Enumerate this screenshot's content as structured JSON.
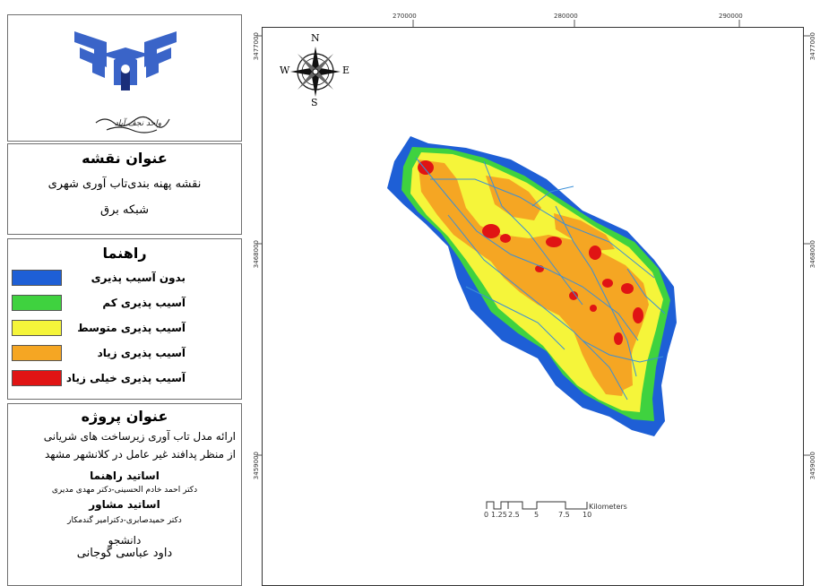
{
  "logo": {
    "caption": "واحد نجف آباد",
    "icon": "university-emblem-icon",
    "color": "#3a64c8"
  },
  "map_title": {
    "heading": "عنوان نقشه",
    "line1": "نقشه پهنه بندی‌تاب آوری شهری",
    "line2": "شبکه برق"
  },
  "legend": {
    "heading": "راهنما",
    "items": [
      {
        "label": "بدون آسیب پذیری",
        "color": "#1e5fd6"
      },
      {
        "label": "آسیب پذیری کم",
        "color": "#3fd23f"
      },
      {
        "label": "آسیب پذیری متوسط",
        "color": "#f5f53a"
      },
      {
        "label": "آسیب پذیری زیاد",
        "color": "#f5a623"
      },
      {
        "label": "آسیب پذیری خیلی زیاد",
        "color": "#e01414"
      }
    ]
  },
  "project": {
    "heading": "عنوان پروژه",
    "line1": "ارائه مدل تاب آوری زیرساخت های شریانی",
    "line2": "از منظر پدافند غیر عامل در کلانشهر مشهد",
    "advisors_heading": "اساتید راهنما",
    "advisors": "دکتر احمد خادم الحسینی-دکتر مهدی مدیری",
    "consult_heading": "اساتید مشاور",
    "consultants": "دکتر حمیدصابری-دکترامیر گندمکار",
    "student_heading": "دانشجو",
    "student": "داود عباسی گوجانی"
  },
  "map": {
    "x_ticks": [
      "270000",
      "280000",
      "290000"
    ],
    "y_ticks": [
      "3477000",
      "3468000",
      "3459000"
    ],
    "compass": {
      "n": "N",
      "s": "S",
      "e": "E",
      "w": "W"
    },
    "scale": {
      "labels": [
        "0",
        "1.25",
        "2.5",
        "5",
        "7.5",
        "10"
      ],
      "unit": "Kilometers"
    }
  }
}
